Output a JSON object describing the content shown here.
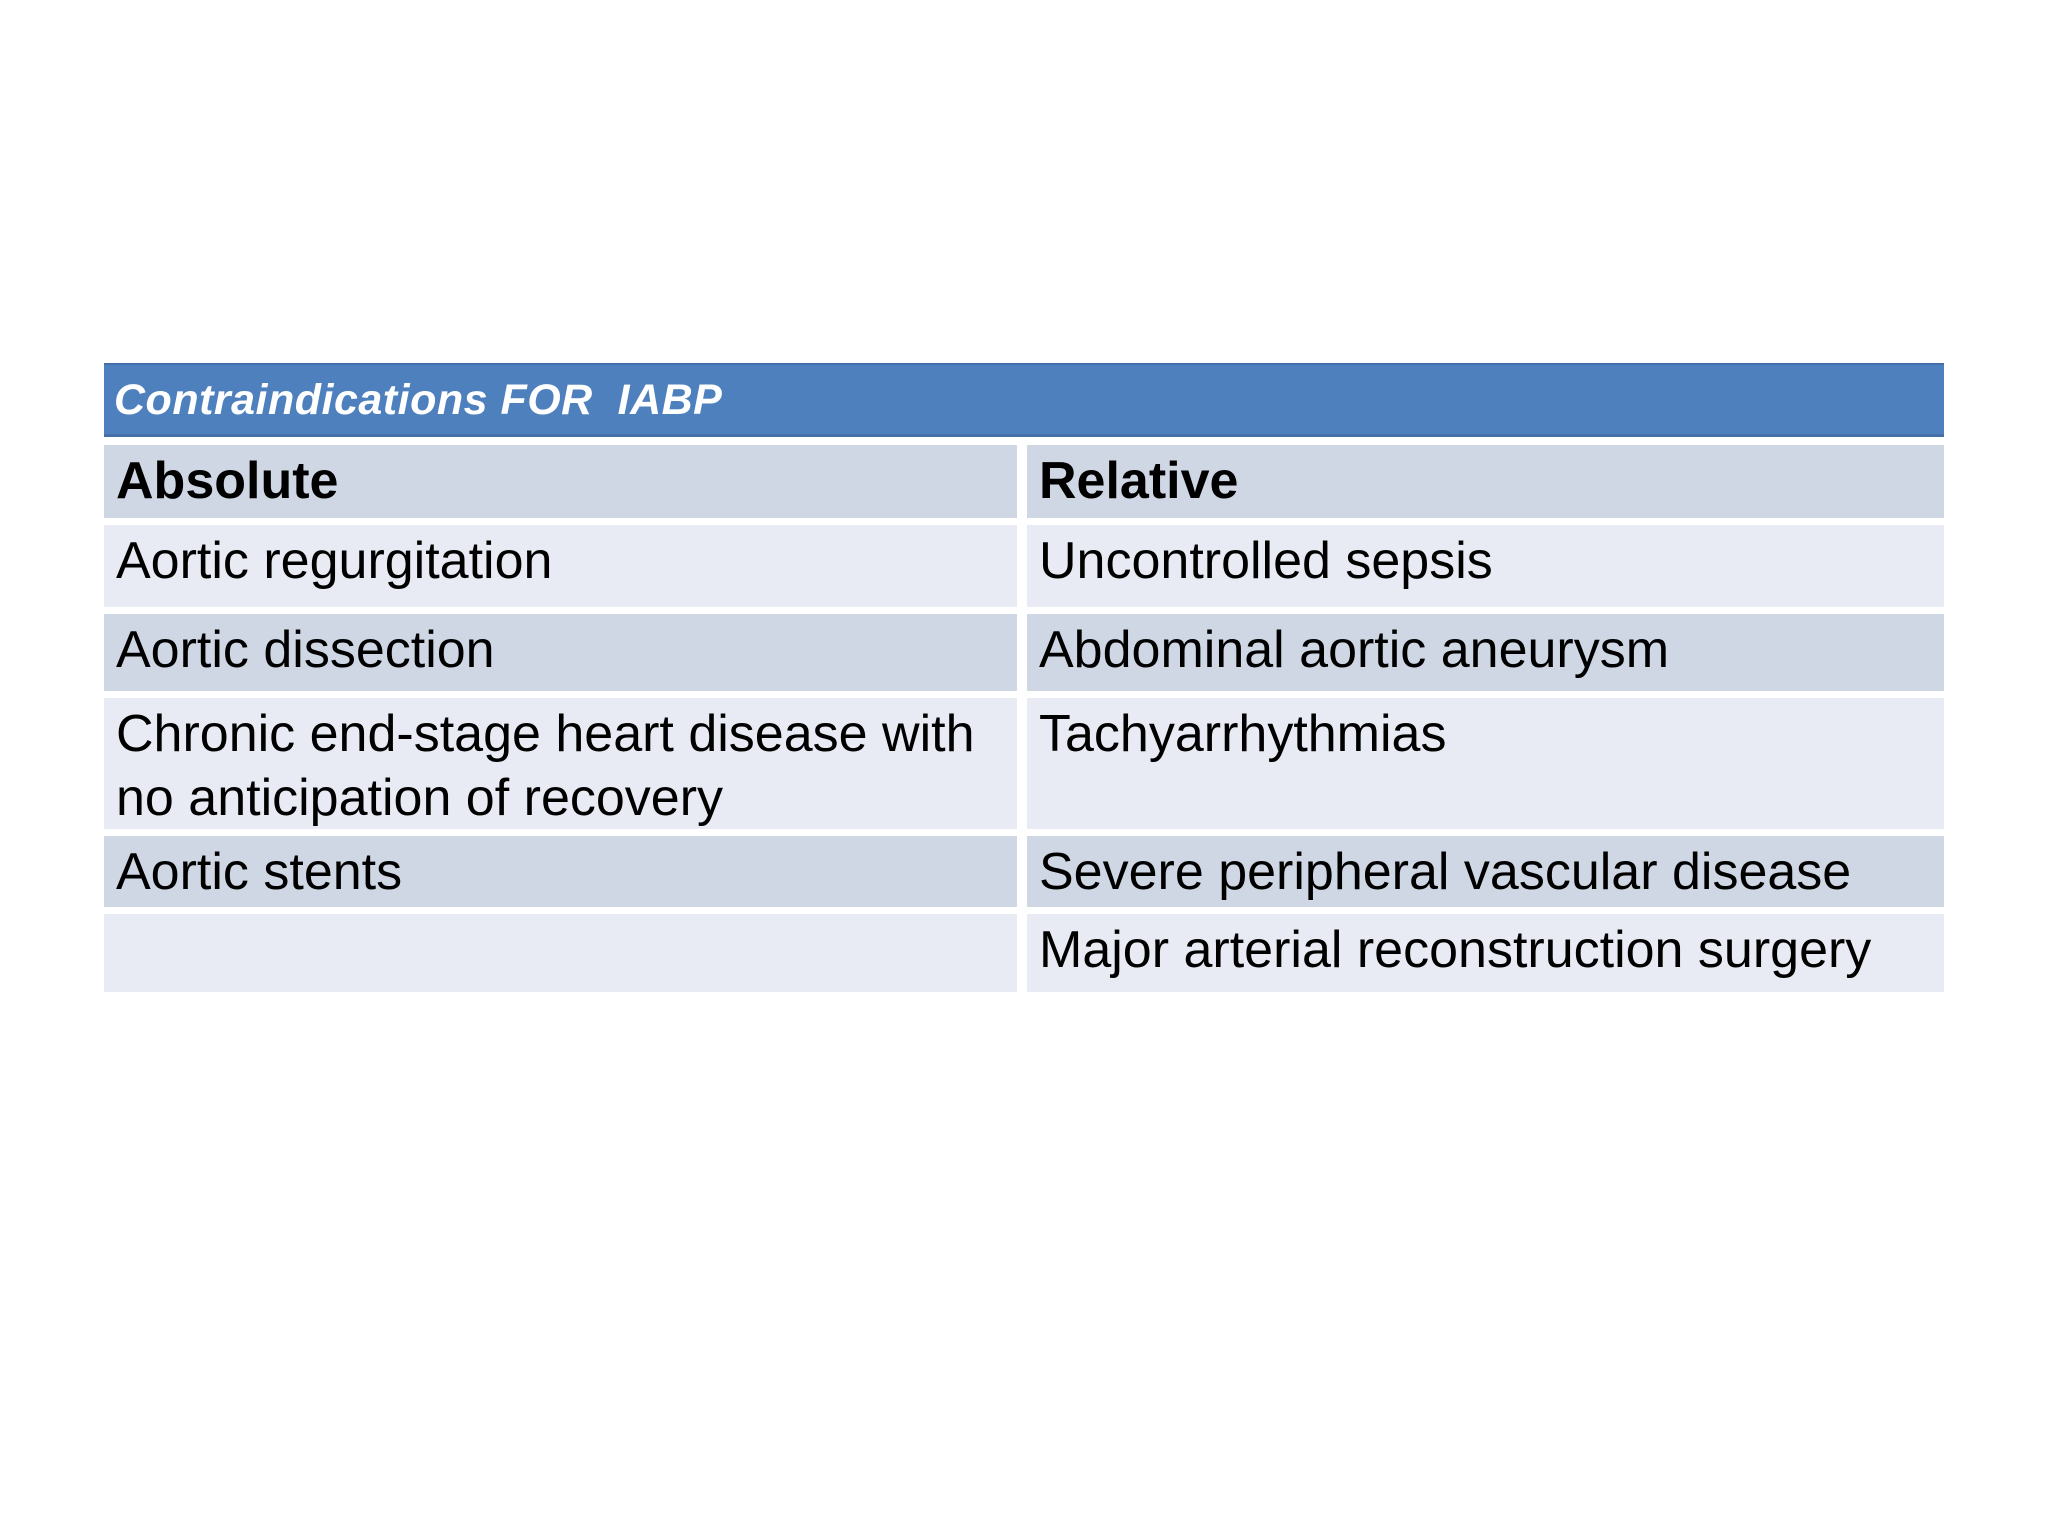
{
  "table": {
    "title": "Contraindications FOR  IABP",
    "columns": [
      {
        "label": "Absolute"
      },
      {
        "label": "Relative"
      }
    ],
    "rows": [
      {
        "absolute": "Aortic regurgitation",
        "relative": "Uncontrolled sepsis"
      },
      {
        "absolute": "Aortic dissection",
        "relative": "Abdominal aortic aneurysm"
      },
      {
        "absolute": "Chronic end-stage heart disease with\nno anticipation of recovery",
        "relative": "Tachyarrhythmias"
      },
      {
        "absolute": "Aortic stents",
        "relative": "Severe peripheral vascular disease"
      },
      {
        "absolute": "",
        "relative": "Major arterial reconstruction surgery"
      }
    ],
    "colors": {
      "title_background": "#4E80BD",
      "title_text": "#FFFFFF",
      "band_dark": "#CFD7E5",
      "band_light": "#E9EBF4",
      "body_text": "#000000",
      "page_background": "#FFFFFF"
    }
  }
}
